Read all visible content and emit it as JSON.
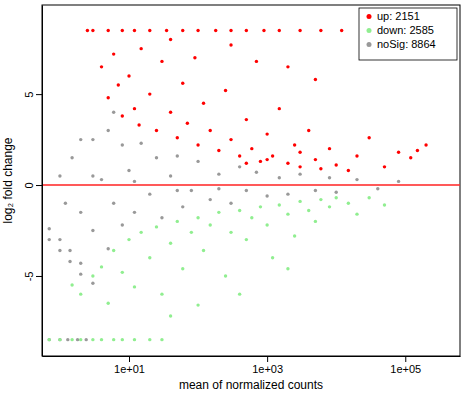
{
  "chart_data": {
    "type": "scatter",
    "x_label": "mean of normalized counts",
    "y_label": "log₂ fold change",
    "log": "x",
    "grid": false,
    "legend": "top-right",
    "marker": "circle",
    "xlim": [
      0.55,
      620000
    ],
    "xticks": [
      {
        "value": 10,
        "label": "1e+01"
      },
      {
        "value": 1000,
        "label": "1e+03"
      },
      {
        "value": 100000,
        "label": "1e+05"
      }
    ],
    "ylim": [
      -9.4,
      9.9
    ],
    "yticks": [
      -5,
      0,
      5
    ],
    "reference_lines": [
      {
        "y": 0,
        "color": "#ff3030"
      }
    ],
    "series": [
      {
        "name": "up: 2151",
        "color": "#ff0000",
        "x": [
          2.5,
          3,
          5,
          8,
          12,
          20,
          35,
          60,
          100,
          180,
          300,
          500,
          900,
          1500,
          3000,
          6000,
          12000,
          4,
          5,
          6,
          7,
          8,
          10,
          12,
          14,
          15,
          20,
          25,
          30,
          40,
          50,
          60,
          70,
          90,
          100,
          120,
          150,
          200,
          250,
          300,
          400,
          500,
          600,
          800,
          1000,
          1200,
          1500,
          2000,
          2500,
          3000,
          4000,
          5000,
          6000,
          8000,
          10000,
          15000,
          20000,
          30000,
          50000,
          80000,
          120000,
          200000,
          150000,
          2000,
          700,
          300,
          5000,
          40,
          1000,
          3000,
          500
        ],
        "values": [
          8.5,
          8.5,
          8.5,
          8.5,
          8.5,
          8.5,
          8.5,
          8.5,
          8.5,
          8.5,
          8.5,
          8.5,
          8.5,
          8.5,
          8.5,
          8.5,
          8.5,
          6.5,
          4.8,
          7.2,
          5.5,
          3.8,
          6.0,
          4.2,
          3.3,
          7.5,
          5.0,
          3.0,
          6.8,
          4.0,
          2.6,
          5.6,
          3.4,
          7.0,
          2.2,
          4.5,
          3.0,
          1.9,
          5.2,
          2.5,
          1.6,
          3.6,
          2.0,
          1.3,
          2.8,
          1.6,
          4.2,
          1.2,
          2.2,
          1.0,
          3.0,
          1.4,
          0.9,
          2.0,
          1.1,
          0.8,
          1.6,
          2.6,
          1.0,
          1.8,
          1.5,
          2.2,
          1.9,
          6.5,
          6.8,
          7.7,
          5.8,
          8.0,
          1.4,
          1.8,
          1.2
        ]
      },
      {
        "name": "down: 2585",
        "color": "#90ee90",
        "x": [
          0.7,
          1,
          1.5,
          2,
          3,
          4,
          6,
          8,
          12,
          20,
          30,
          1.5,
          2,
          3,
          4,
          5,
          6,
          8,
          10,
          12,
          15,
          20,
          25,
          30,
          40,
          50,
          60,
          80,
          100,
          120,
          150,
          200,
          250,
          300,
          400,
          500,
          600,
          800,
          1000,
          1200,
          1500,
          2000,
          2500,
          3000,
          4000,
          5000,
          6000,
          8000,
          10000,
          15000,
          20000,
          30000,
          50000,
          400,
          100,
          40,
          2000
        ],
        "values": [
          -8.5,
          -8.5,
          -8.5,
          -8.5,
          -8.5,
          -8.5,
          -8.5,
          -8.5,
          -8.5,
          -8.5,
          -8.5,
          -5.5,
          -6.0,
          -5.0,
          -4.5,
          -6.5,
          -3.6,
          -4.8,
          -3.0,
          -5.6,
          -2.6,
          -4.0,
          -2.3,
          -6.0,
          -3.2,
          -2.0,
          -4.6,
          -2.6,
          -1.8,
          -3.6,
          -2.2,
          -1.5,
          -5.0,
          -2.6,
          -1.4,
          -3.0,
          -1.8,
          -1.2,
          -2.2,
          -4.0,
          -1.1,
          -1.6,
          -2.8,
          -0.9,
          -1.4,
          -2.0,
          -0.8,
          -1.2,
          -0.7,
          -1.0,
          -1.6,
          -0.7,
          -1.1,
          -6.0,
          -6.6,
          -7.2,
          -4.6
        ]
      },
      {
        "name": "noSig: 8864",
        "color": "#999999",
        "x": [
          0.7,
          1,
          1.3,
          1.8,
          2.4,
          0.7,
          1,
          1.4,
          2,
          0.7,
          1,
          1.4,
          2,
          3,
          1,
          1.5,
          2,
          3,
          3,
          4,
          5,
          5,
          6,
          8,
          8,
          10,
          12,
          15,
          20,
          25,
          30,
          40,
          50,
          60,
          80,
          100,
          150,
          200,
          300,
          400,
          500,
          700,
          1000,
          1500,
          2000,
          3000,
          5000,
          8000,
          10000,
          20000,
          40000,
          80000,
          3,
          12,
          50,
          200,
          2,
          6,
          1.2
        ],
        "values": [
          -8.5,
          -8.5,
          -8.5,
          -8.5,
          -8.5,
          -2.4,
          -3.0,
          -3.6,
          -4.3,
          -3.0,
          -3.6,
          -4.2,
          -4.9,
          -5.4,
          0.5,
          1.5,
          -1.5,
          2.5,
          -2.5,
          0.3,
          3.0,
          -3.5,
          -1,
          2.2,
          -2.2,
          0.8,
          -1.5,
          2.3,
          -0.5,
          1.5,
          -1.8,
          0.5,
          1.6,
          -1.2,
          -0.3,
          1.3,
          -0.8,
          0.6,
          -1.0,
          1.0,
          -0.3,
          0.7,
          -0.6,
          0.4,
          -0.5,
          0.6,
          -0.3,
          0.4,
          -0.4,
          0.3,
          -0.2,
          0.2,
          0.5,
          0.2,
          -0.3,
          -0.2,
          2.5,
          4.0,
          -1.0
        ]
      }
    ]
  }
}
